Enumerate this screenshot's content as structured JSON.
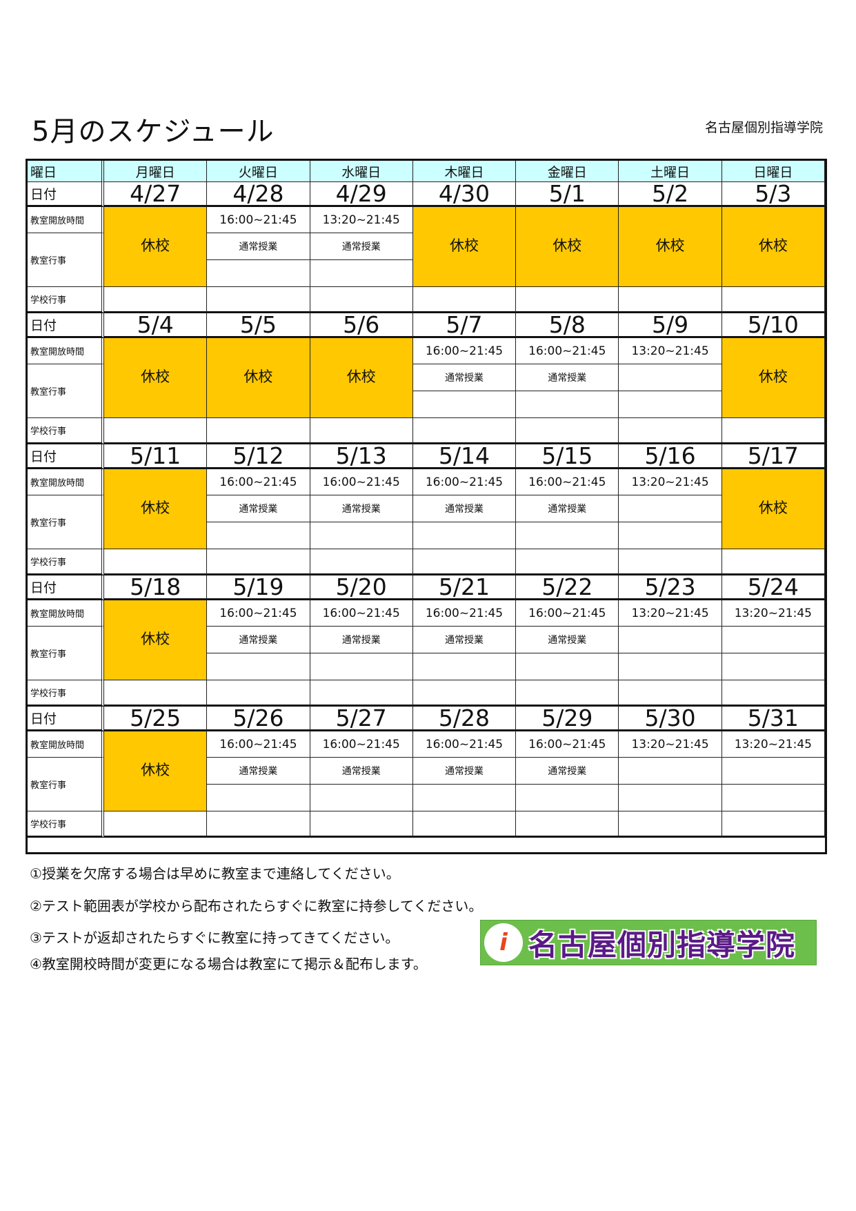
{
  "title": "5月のスケジュール",
  "organization": "名古屋個別指導学院",
  "colors": {
    "header_bg": "#ccffff",
    "closed_bg": "#ffc800"
  },
  "table": {
    "header_label": "曜日",
    "weekdays": [
      "月曜日",
      "火曜日",
      "水曜日",
      "木曜日",
      "金曜日",
      "土曜日",
      "日曜日"
    ],
    "row_labels": {
      "date": "日付",
      "open_hours": "教室開放時間",
      "class_event": "教室行事",
      "school_event": "学校行事"
    },
    "closed_label": "休校",
    "weeks": [
      {
        "dates": [
          "4/27",
          "4/28",
          "4/29",
          "4/30",
          "5/1",
          "5/2",
          "5/3"
        ],
        "days": [
          {
            "closed": true
          },
          {
            "open": "16:00~21:45",
            "event": "通常授業"
          },
          {
            "open": "13:20~21:45",
            "event": "通常授業"
          },
          {
            "closed": true
          },
          {
            "closed": true
          },
          {
            "closed": true
          },
          {
            "closed": true
          }
        ]
      },
      {
        "dates": [
          "5/4",
          "5/5",
          "5/6",
          "5/7",
          "5/8",
          "5/9",
          "5/10"
        ],
        "days": [
          {
            "closed": true
          },
          {
            "closed": true
          },
          {
            "closed": true
          },
          {
            "open": "16:00~21:45",
            "event": "通常授業"
          },
          {
            "open": "16:00~21:45",
            "event": "通常授業"
          },
          {
            "open": "13:20~21:45",
            "event": ""
          },
          {
            "closed": true
          }
        ]
      },
      {
        "dates": [
          "5/11",
          "5/12",
          "5/13",
          "5/14",
          "5/15",
          "5/16",
          "5/17"
        ],
        "days": [
          {
            "closed": true
          },
          {
            "open": "16:00~21:45",
            "event": "通常授業"
          },
          {
            "open": "16:00~21:45",
            "event": "通常授業"
          },
          {
            "open": "16:00~21:45",
            "event": "通常授業"
          },
          {
            "open": "16:00~21:45",
            "event": "通常授業"
          },
          {
            "open": "13:20~21:45",
            "event": ""
          },
          {
            "closed": true
          }
        ]
      },
      {
        "dates": [
          "5/18",
          "5/19",
          "5/20",
          "5/21",
          "5/22",
          "5/23",
          "5/24"
        ],
        "days": [
          {
            "closed": true
          },
          {
            "open": "16:00~21:45",
            "event": "通常授業"
          },
          {
            "open": "16:00~21:45",
            "event": "通常授業"
          },
          {
            "open": "16:00~21:45",
            "event": "通常授業"
          },
          {
            "open": "16:00~21:45",
            "event": "通常授業"
          },
          {
            "open": "13:20~21:45",
            "event": ""
          },
          {
            "open": "13:20~21:45",
            "event": ""
          }
        ]
      },
      {
        "dates": [
          "5/25",
          "5/26",
          "5/27",
          "5/28",
          "5/29",
          "5/30",
          "5/31"
        ],
        "days": [
          {
            "closed": true
          },
          {
            "open": "16:00~21:45",
            "event": "通常授業"
          },
          {
            "open": "16:00~21:45",
            "event": "通常授業"
          },
          {
            "open": "16:00~21:45",
            "event": "通常授業"
          },
          {
            "open": "16:00~21:45",
            "event": "通常授業"
          },
          {
            "open": "13:20~21:45",
            "event": ""
          },
          {
            "open": "13:20~21:45",
            "event": ""
          }
        ]
      }
    ]
  },
  "notes": [
    "①授業を欠席する場合は早めに教室まで連絡してください。",
    "②テスト範囲表が学校から配布されたらすぐに教室に持参してください。",
    "③テストが返却されたらすぐに教室に持ってきてください。",
    "④教室開校時間が変更になる場合は教室にて掲示＆配布します。"
  ],
  "logo": {
    "text": "名古屋個別指導学院"
  }
}
